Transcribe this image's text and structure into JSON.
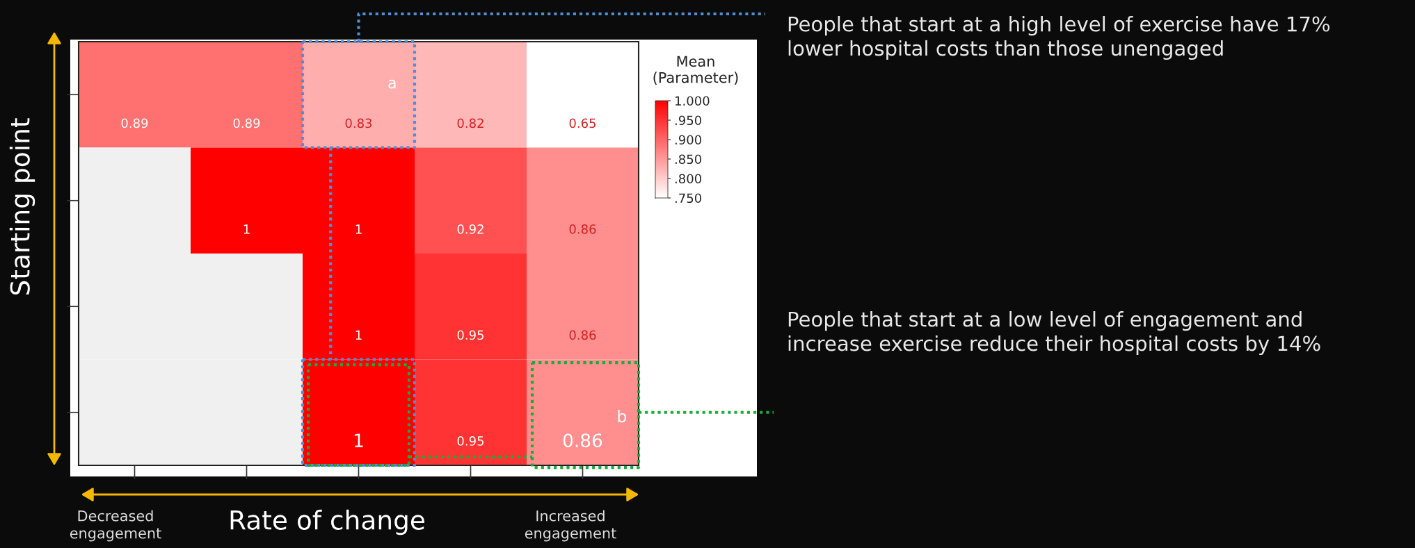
{
  "chart_data": {
    "type": "heatmap",
    "categories": [
      null,
      null,
      null,
      null,
      null
    ],
    "y_categories": [
      null,
      null,
      null,
      null
    ],
    "cells": [
      [
        0.89,
        0.89,
        0.83,
        0.82,
        0.65
      ],
      [
        null,
        1,
        1,
        0.92,
        0.86
      ],
      [
        null,
        null,
        1,
        0.95,
        0.86
      ],
      [
        null,
        null,
        1,
        0.95,
        0.86
      ]
    ],
    "clabel": "Mean\n(Parameter)",
    "clim": [
      0.75,
      1.0
    ],
    "cticks": [
      {
        "value": 1.0,
        "label": "1.000"
      },
      {
        "value": 0.95,
        "label": ".950"
      },
      {
        "value": 0.9,
        "label": ".900"
      },
      {
        "value": 0.85,
        "label": ".850"
      },
      {
        "value": 0.8,
        "label": ".800"
      },
      {
        "value": 0.75,
        "label": ".750"
      }
    ],
    "xlabel": "Rate of change",
    "ylabel": "Starting point",
    "annotations": [
      "People that start at a high level of exercise have 17%\nlower hospital costs than those unengaged",
      "People that start at a low level of engagement and\nincrease exercise reduce their hospital costs by 14%",
      "a",
      "b",
      "Decreased\nengagement",
      "Increased\nengagement"
    ],
    "data_labels": true,
    "grid": false
  }
}
